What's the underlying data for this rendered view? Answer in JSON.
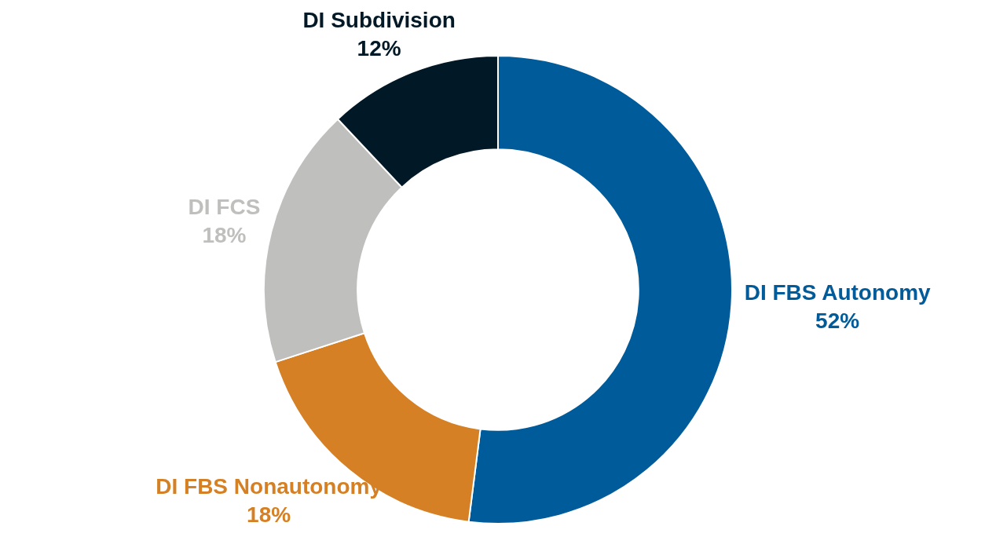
{
  "chart_data": {
    "type": "donut",
    "categories": [
      "DI FBS Autonomy",
      "DI FBS Nonautonomy",
      "DI FCS",
      "DI Subdivision"
    ],
    "values": [
      52,
      18,
      18,
      12
    ],
    "colors": [
      "#005b9a",
      "#d58024",
      "#bfbfbd",
      "#011826"
    ],
    "value_labels": [
      "52%",
      "18%",
      "18%",
      "12%"
    ],
    "legend": false
  }
}
